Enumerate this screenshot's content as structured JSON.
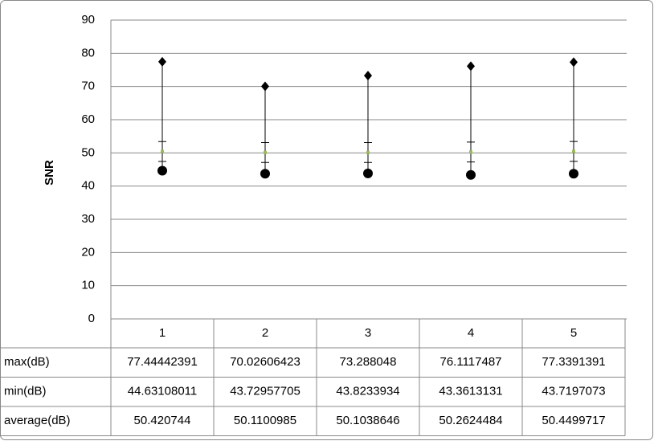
{
  "chart_data": {
    "type": "highlow",
    "y_label": "SNR",
    "categories": [
      "1",
      "2",
      "3",
      "4",
      "5"
    ],
    "ylim": [
      0,
      90
    ],
    "yticks": [
      0,
      10,
      20,
      30,
      40,
      50,
      60,
      70,
      80,
      90
    ],
    "grid": true,
    "series": [
      {
        "name": "max(dB)",
        "color": "#000000",
        "marker": "diamond",
        "values": [
          77.44442391,
          70.02606423,
          73.288048,
          76.1117487,
          77.3391391
        ]
      },
      {
        "name": "min(dB)",
        "color": "#000000",
        "marker": "circle",
        "values": [
          44.63108011,
          43.72957705,
          43.8233934,
          43.3613131,
          43.7197073
        ]
      },
      {
        "name": "average(dB)",
        "color": "#9bbb59",
        "marker": "dot",
        "error_color": "#000000",
        "values": [
          50.420744,
          50.1100985,
          50.1038646,
          50.2624484,
          50.4499717
        ],
        "error": [
          3,
          3,
          3,
          3,
          3
        ]
      }
    ]
  }
}
